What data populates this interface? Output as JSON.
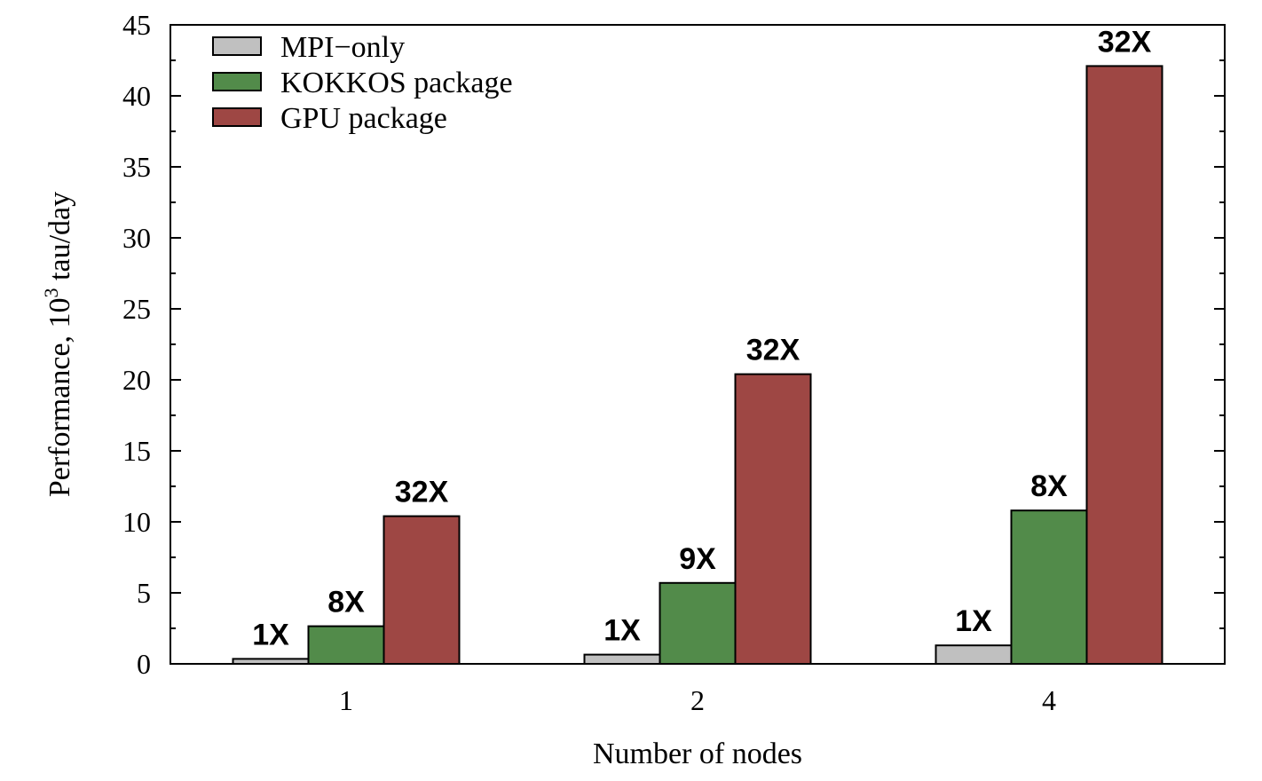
{
  "chart_data": {
    "type": "bar",
    "categories": [
      "1",
      "2",
      "4"
    ],
    "xlabel": "Number of nodes",
    "ylabel": {
      "prefix": "Performance, 10",
      "sup": "3",
      "suffix": " tau/day"
    },
    "ylim": [
      0,
      45
    ],
    "yticks": [
      0,
      5,
      10,
      15,
      20,
      25,
      30,
      35,
      40,
      45
    ],
    "grid": false,
    "legend_position": "top-left",
    "series": [
      {
        "name": "MPI−only",
        "color": "#c0c0c0",
        "values": [
          0.35,
          0.65,
          1.3
        ],
        "labels": [
          "1X",
          "1X",
          "1X"
        ]
      },
      {
        "name": "KOKKOS package",
        "color": "#528b4a",
        "values": [
          2.65,
          5.7,
          10.8
        ],
        "labels": [
          "8X",
          "9X",
          "8X"
        ]
      },
      {
        "name": "GPU package",
        "color": "#9e4744",
        "values": [
          10.4,
          20.4,
          42.1
        ],
        "labels": [
          "32X",
          "32X",
          "32X"
        ]
      }
    ]
  }
}
